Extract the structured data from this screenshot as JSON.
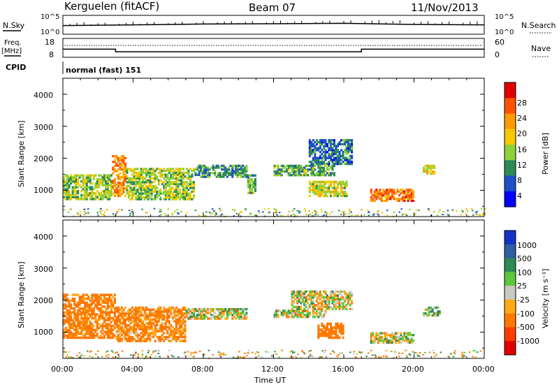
{
  "header": {
    "station": "Kerguelen (fitACF)",
    "beam": "Beam 07",
    "date": "11/Nov/2013"
  },
  "panels": {
    "nsky": {
      "label": "N.Sky",
      "left_ticks": [
        "10^5",
        "10^0"
      ],
      "right_ticks": [
        "10^5",
        "10^0"
      ],
      "right_label": "N.Search"
    },
    "freq": {
      "label_line1": "Freq.",
      "label_line2": "[MHz]",
      "left_ticks": [
        "18",
        "8"
      ],
      "right_ticks": [
        "60",
        "0"
      ],
      "right_label": "Nave"
    },
    "cpid": {
      "label": "CPID",
      "value": "normal (fast) 151"
    }
  },
  "axes": {
    "ylabel": "Slant Range [km]",
    "yticks": [
      "1000",
      "2000",
      "3000",
      "4000"
    ],
    "xticks": [
      "00:00",
      "04:00",
      "08:00",
      "12:00",
      "16:00",
      "20:00",
      "00:00"
    ],
    "xlabel": "Time UT"
  },
  "colorbars": {
    "power": {
      "label": "Power [dB]",
      "ticks": [
        "28",
        "24",
        "20",
        "16",
        "12",
        "8",
        "4"
      ],
      "colors": [
        "#e00000",
        "#ff5000",
        "#ff9a00",
        "#f5c800",
        "#8cd238",
        "#2e8b57",
        "#1e50c8",
        "#0000ff"
      ]
    },
    "velocity": {
      "label": "Velocity [m s⁻¹]",
      "ticks": [
        "1000",
        "500",
        "100",
        "25",
        "-25",
        "-100",
        "-500",
        "-1000"
      ],
      "colors": [
        "#1432c8",
        "#2e5fa0",
        "#2e8b57",
        "#5cc83c",
        "#c8c8c0",
        "#ffaa14",
        "#ff7800",
        "#ff3c00",
        "#e00000"
      ]
    }
  },
  "chart_data": [
    {
      "type": "line",
      "title": "N.Sky / N.Search",
      "x": [
        "00:00",
        "04:00",
        "08:00",
        "12:00",
        "16:00",
        "20:00",
        "24:00"
      ],
      "series": [
        {
          "name": "N.Sky",
          "values": [
            200,
            300,
            500,
            600,
            800,
            400,
            300
          ]
        }
      ],
      "ylim": [
        1,
        100000
      ]
    },
    {
      "type": "line",
      "title": "Freq. [MHz]",
      "x": [
        "00:00",
        "03:00",
        "03:00",
        "17:00",
        "17:00",
        "24:00"
      ],
      "series": [
        {
          "name": "Freq. [MHz]",
          "values": [
            12.3,
            12.3,
            10.9,
            10.9,
            12.3,
            12.3
          ]
        }
      ],
      "ylim": [
        8,
        18
      ]
    },
    {
      "type": "heatmap",
      "title": "Power [dB]",
      "xlim": [
        0,
        24
      ],
      "ylim": [
        180,
        4500
      ],
      "regions": [
        {
          "t": [
            0.0,
            2.8
          ],
          "r": [
            700,
            1500
          ],
          "v": 14
        },
        {
          "t": [
            2.8,
            3.6
          ],
          "r": [
            800,
            2100
          ],
          "v": 22
        },
        {
          "t": [
            3.6,
            7.5
          ],
          "r": [
            700,
            1700
          ],
          "v": 14
        },
        {
          "t": [
            7.5,
            10.5
          ],
          "r": [
            1400,
            1800
          ],
          "v": 10
        },
        {
          "t": [
            10.5,
            11.0
          ],
          "r": [
            900,
            1500
          ],
          "v": 12
        },
        {
          "t": [
            12.0,
            15.5
          ],
          "r": [
            1450,
            1800
          ],
          "v": 12
        },
        {
          "t": [
            14.0,
            16.5
          ],
          "r": [
            1800,
            2600
          ],
          "v": 8
        },
        {
          "t": [
            14.0,
            16.2
          ],
          "r": [
            800,
            1300
          ],
          "v": 16
        },
        {
          "t": [
            17.5,
            20.0
          ],
          "r": [
            650,
            1050
          ],
          "v": 24
        },
        {
          "t": [
            20.5,
            21.2
          ],
          "r": [
            1500,
            1800
          ],
          "v": 18
        }
      ]
    },
    {
      "type": "heatmap",
      "title": "Velocity [m s-1]",
      "xlim": [
        0,
        24
      ],
      "ylim": [
        180,
        4500
      ],
      "regions": [
        {
          "t": [
            0.0,
            3.0
          ],
          "r": [
            800,
            2200
          ],
          "v": -200
        },
        {
          "t": [
            3.0,
            7.0
          ],
          "r": [
            700,
            1800
          ],
          "v": -150
        },
        {
          "t": [
            7.0,
            10.5
          ],
          "r": [
            1400,
            1750
          ],
          "v": 0
        },
        {
          "t": [
            12.0,
            15.0
          ],
          "r": [
            1450,
            1700
          ],
          "v": 0
        },
        {
          "t": [
            13.0,
            16.5
          ],
          "r": [
            1700,
            2300
          ],
          "v": 0
        },
        {
          "t": [
            14.5,
            16.0
          ],
          "r": [
            800,
            1300
          ],
          "v": -300
        },
        {
          "t": [
            17.5,
            20.0
          ],
          "r": [
            650,
            1000
          ],
          "v": 0
        },
        {
          "t": [
            20.5,
            21.5
          ],
          "r": [
            1500,
            1800
          ],
          "v": 50
        }
      ]
    }
  ]
}
